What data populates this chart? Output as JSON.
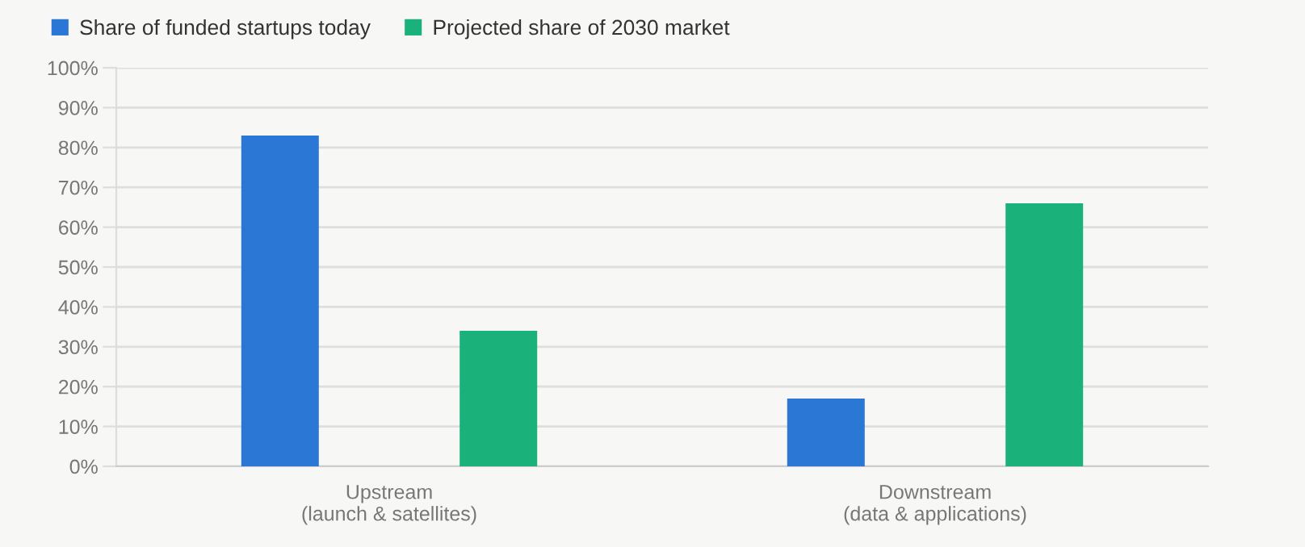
{
  "chart_data": {
    "type": "bar",
    "categories": [
      "Upstream\n(launch & satellites)",
      "Downstream\n(data & applications)"
    ],
    "series": [
      {
        "name": "Share of funded startups today",
        "color": "#2a77d6",
        "values": [
          83,
          17
        ]
      },
      {
        "name": "Projected share of 2030 market",
        "color": "#1bb17b",
        "values": [
          34,
          66
        ]
      }
    ],
    "ylim": [
      0,
      100
    ],
    "yticks": [
      {
        "value": 0,
        "label": "0%"
      },
      {
        "value": 10,
        "label": "10%"
      },
      {
        "value": 20,
        "label": "20%"
      },
      {
        "value": 30,
        "label": "30%"
      },
      {
        "value": 40,
        "label": "40%"
      },
      {
        "value": 50,
        "label": "50%"
      },
      {
        "value": 60,
        "label": "60%"
      },
      {
        "value": 70,
        "label": "70%"
      },
      {
        "value": 80,
        "label": "80%"
      },
      {
        "value": 90,
        "label": "90%"
      },
      {
        "value": 100,
        "label": "100%"
      }
    ],
    "grid": "y",
    "legend": "top left"
  }
}
